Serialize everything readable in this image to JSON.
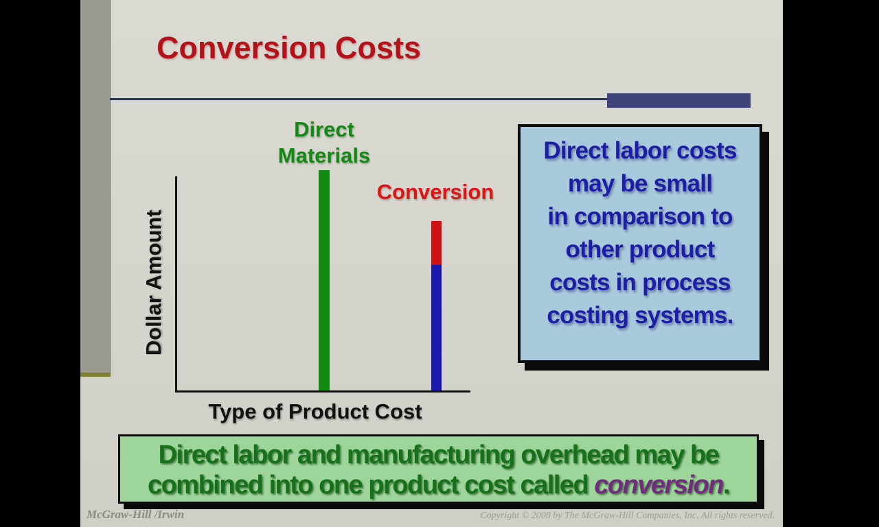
{
  "slide": {
    "title": "Conversion Costs",
    "title_color": "#B3121A",
    "background_color": "#D5D5CD",
    "divider_color": "#2B3560",
    "accent_bar_color": "#3E4477",
    "sidebar_strip_color": "#9A9A90",
    "sidebar_tick_color": "#7E7E2C"
  },
  "chart": {
    "type": "bar",
    "ylabel": "Dollar Amount",
    "xlabel": "Type of Product Cost",
    "axis_color": "#121212",
    "bars": [
      {
        "label_lines": [
          "Direct",
          "Materials"
        ],
        "label_color": "#128912",
        "segments": [
          {
            "name": "direct materials",
            "color": "#128912",
            "relative_height": 1.0
          }
        ]
      },
      {
        "label_lines": [
          "Conversion"
        ],
        "label_color": "#DC1515",
        "segments": [
          {
            "name": "manufacturing overhead",
            "color": "#CE1111",
            "relative_height": 0.2
          },
          {
            "name": "direct labor",
            "color": "#1919AE",
            "relative_height": 0.57
          }
        ]
      }
    ]
  },
  "callout": {
    "background": "#A9CADC",
    "text_color": "#1D1DA8",
    "lines": [
      "Direct labor costs",
      "may be small",
      "in comparison to",
      "other product",
      "costs in process",
      "costing systems."
    ]
  },
  "banner": {
    "background": "#9DD59A",
    "text_color": "#17701A",
    "line1": "Direct labor and manufacturing overhead may be",
    "line2_prefix": "combined into one product cost called ",
    "line2_highlight": "conversion",
    "line2_suffix": ".",
    "highlight_color": "#722B7E"
  },
  "footer": {
    "left": "McGraw-Hill /Irwin",
    "right": "Copyright © 2008 by The McGraw-Hill Companies, Inc. All rights reserved."
  }
}
